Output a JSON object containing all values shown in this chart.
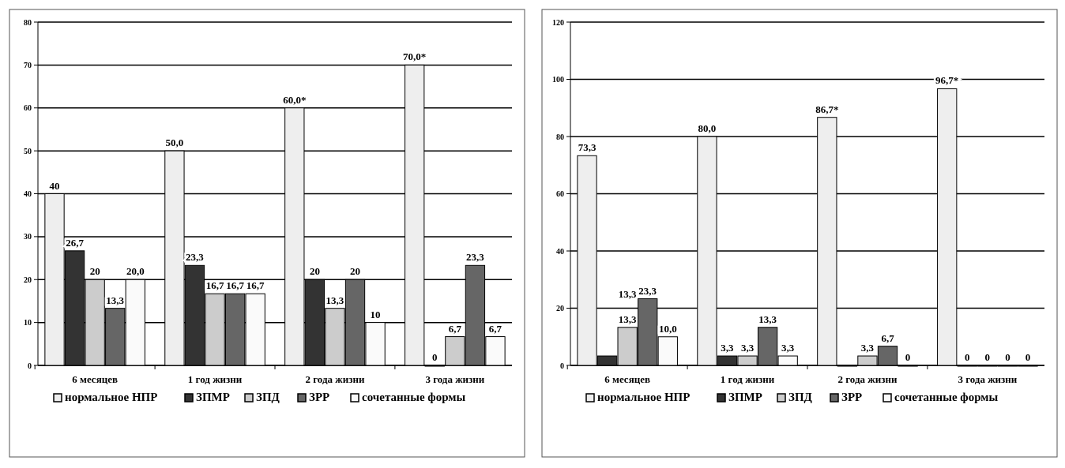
{
  "chart_data": [
    {
      "type": "bar",
      "categories": [
        "6 месяцев",
        "1 год жизни",
        "2 года жизни",
        "3 года жизни"
      ],
      "ylim": [
        0,
        80
      ],
      "yticks": [
        0,
        10,
        20,
        30,
        40,
        50,
        60,
        70,
        80
      ],
      "grid": "y",
      "legend": "bottom",
      "series": [
        {
          "name": "нормальное НПР",
          "color": "#eeeeee",
          "values": [
            40,
            50.0,
            60.0,
            70.0
          ],
          "value_labels": [
            "40",
            "50,0",
            "60,0*",
            "70,0*"
          ]
        },
        {
          "name": "ЗПМР",
          "color": "#333333",
          "values": [
            26.7,
            23.3,
            20,
            0
          ],
          "value_labels": [
            "26,7",
            "23,3",
            "20",
            "0"
          ]
        },
        {
          "name": "ЗПД",
          "color": "#cccccc",
          "values": [
            20,
            16.7,
            13.3,
            6.7
          ],
          "value_labels": [
            "20",
            "16,7",
            "13,3",
            "6,7"
          ]
        },
        {
          "name": "ЗРР",
          "color": "#666666",
          "values": [
            13.3,
            16.7,
            20,
            23.3
          ],
          "value_labels": [
            "13,3",
            "16,7",
            "20",
            "23,3"
          ]
        },
        {
          "name": "сочетанные формы",
          "color": "#fafafa",
          "values": [
            20.0,
            16.7,
            10,
            6.7
          ],
          "value_labels": [
            "20,0",
            "16,7",
            "10",
            "6,7"
          ]
        }
      ]
    },
    {
      "type": "bar",
      "categories": [
        "6 месяцев",
        "1 год жизни",
        "2 года жизни",
        "3 года жизни"
      ],
      "ylim": [
        0,
        120
      ],
      "yticks": [
        0,
        20,
        40,
        60,
        80,
        100,
        120
      ],
      "grid": "y",
      "legend": "bottom",
      "annotations": [
        {
          "text": "13,3",
          "x": "6 месяцев",
          "y": 13.3
        }
      ],
      "series": [
        {
          "name": "нормальное НПР",
          "color": "#eeeeee",
          "values": [
            73.3,
            80.0,
            86.7,
            96.7
          ],
          "value_labels": [
            "73,3",
            "80,0",
            "86,7*",
            "96,7*"
          ]
        },
        {
          "name": "ЗПМР",
          "color": "#333333",
          "values": [
            3.3,
            3.3,
            0,
            0
          ],
          "value_labels": [
            null,
            "3,3",
            null,
            "0"
          ]
        },
        {
          "name": "ЗПД",
          "color": "#cccccc",
          "values": [
            13.3,
            3.3,
            3.3,
            0
          ],
          "value_labels": [
            "13,3",
            "3,3",
            "3,3",
            "0"
          ]
        },
        {
          "name": "ЗРР",
          "color": "#666666",
          "values": [
            23.3,
            13.3,
            6.7,
            0
          ],
          "value_labels": [
            "23,3",
            "13,3",
            "6,7",
            "0"
          ]
        },
        {
          "name": "сочетанные формы",
          "color": "#fafafa",
          "values": [
            10.0,
            3.3,
            0,
            0
          ],
          "value_labels": [
            "10,0",
            "3,3",
            "0",
            "0"
          ]
        }
      ]
    }
  ]
}
